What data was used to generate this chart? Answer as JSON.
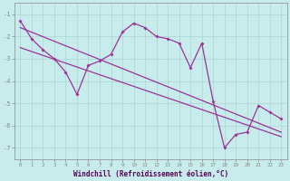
{
  "xlabel": "Windchill (Refroidissement éolien,°C)",
  "background_color": "#c8ecec",
  "grid_color": "#b0d8d8",
  "line_color": "#993399",
  "xlim": [
    -0.5,
    23.5
  ],
  "ylim": [
    -7.5,
    -0.5
  ],
  "xticks": [
    0,
    1,
    2,
    3,
    4,
    5,
    6,
    7,
    8,
    9,
    10,
    11,
    12,
    13,
    14,
    15,
    16,
    17,
    18,
    19,
    20,
    21,
    22,
    23
  ],
  "yticks": [
    -7,
    -6,
    -5,
    -4,
    -3,
    -2,
    -1
  ],
  "series1_x": [
    0,
    1,
    2,
    3,
    4,
    5,
    6,
    7,
    8,
    9,
    10,
    11,
    12,
    13,
    14,
    15,
    16,
    17,
    18,
    19,
    20,
    21,
    22,
    23
  ],
  "series1_y": [
    -1.3,
    -2.1,
    -2.6,
    -3.0,
    -3.6,
    -4.6,
    -3.3,
    -3.1,
    -2.8,
    -1.8,
    -1.4,
    -1.6,
    -2.0,
    -2.1,
    -2.3,
    -3.4,
    -2.3,
    -4.9,
    -7.0,
    -6.4,
    -6.3,
    -5.1,
    -5.4,
    -5.7
  ],
  "series2_x": [
    0,
    23
  ],
  "series2_y": [
    -1.6,
    -6.3
  ],
  "series3_x": [
    0,
    23
  ],
  "series3_y": [
    -2.5,
    -6.5
  ]
}
